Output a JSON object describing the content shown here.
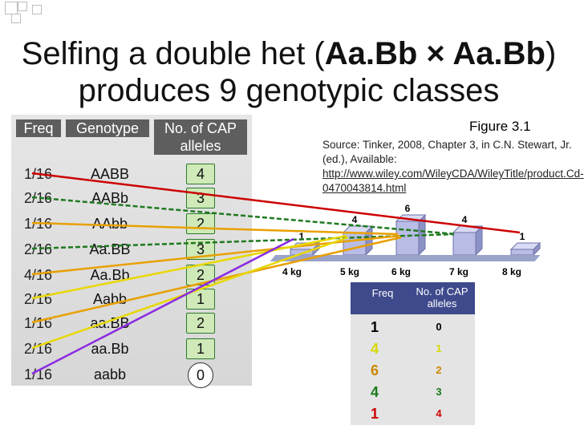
{
  "title": {
    "line1_prefix": "Selfing a double het (",
    "line1_bold": "Aa.Bb × Aa.Bb",
    "line1_suffix": ")",
    "line2": "produces 9 genotypic classes"
  },
  "table": {
    "headers": {
      "freq": "Freq",
      "genotype": "Genotype",
      "cap": "No. of CAP alleles"
    },
    "rows": [
      {
        "freq": "1/16",
        "genotype": "AABB",
        "cap": "4"
      },
      {
        "freq": "2/16",
        "genotype": "AABb",
        "cap": "3"
      },
      {
        "freq": "1/16",
        "genotype": "AAbb",
        "cap": "2"
      },
      {
        "freq": "2/16",
        "genotype": "Aa.BB",
        "cap": "3"
      },
      {
        "freq": "4/16",
        "genotype": "Aa.Bb",
        "cap": "2"
      },
      {
        "freq": "2/16",
        "genotype": "Aabb",
        "cap": "1"
      },
      {
        "freq": "1/16",
        "genotype": "aa.BB",
        "cap": "2"
      },
      {
        "freq": "2/16",
        "genotype": "aa.Bb",
        "cap": "1"
      },
      {
        "freq": "1/16",
        "genotype": "aabb",
        "cap": "0"
      }
    ]
  },
  "figure": {
    "label": "Figure 3.1",
    "source": "Source: Tinker, 2008, Chapter 3, in C.N. Stewart, Jr. (ed.), Available:",
    "link": "http://www.wiley.com/WileyCDA/WileyTitle/product.Cd-0470043814.html"
  },
  "chart_data": {
    "type": "bar",
    "categories": [
      "4 kg",
      "5 kg",
      "6 kg",
      "7 kg",
      "8 kg"
    ],
    "values": [
      1,
      4,
      6,
      4,
      1
    ],
    "title": "",
    "xlabel": "",
    "ylabel": ""
  },
  "mini_table": {
    "headers": {
      "freq": "Freq",
      "cap": "No. of CAP alleles"
    },
    "rows": [
      {
        "freq": "1",
        "cap": "0",
        "color": "#000000"
      },
      {
        "freq": "4",
        "cap": "1",
        "color": "#d8d800"
      },
      {
        "freq": "6",
        "cap": "2",
        "color": "#cc8800"
      },
      {
        "freq": "4",
        "cap": "3",
        "color": "#1a7a1a"
      },
      {
        "freq": "1",
        "cap": "4",
        "color": "#cc0000"
      }
    ]
  },
  "colors": {
    "arrow_yellow": "#e8d800",
    "arrow_orange": "#e8a000",
    "arrow_green": "#1f7a1f",
    "arrow_red": "#cc0000",
    "arrow_purple": "#8a2be2"
  }
}
